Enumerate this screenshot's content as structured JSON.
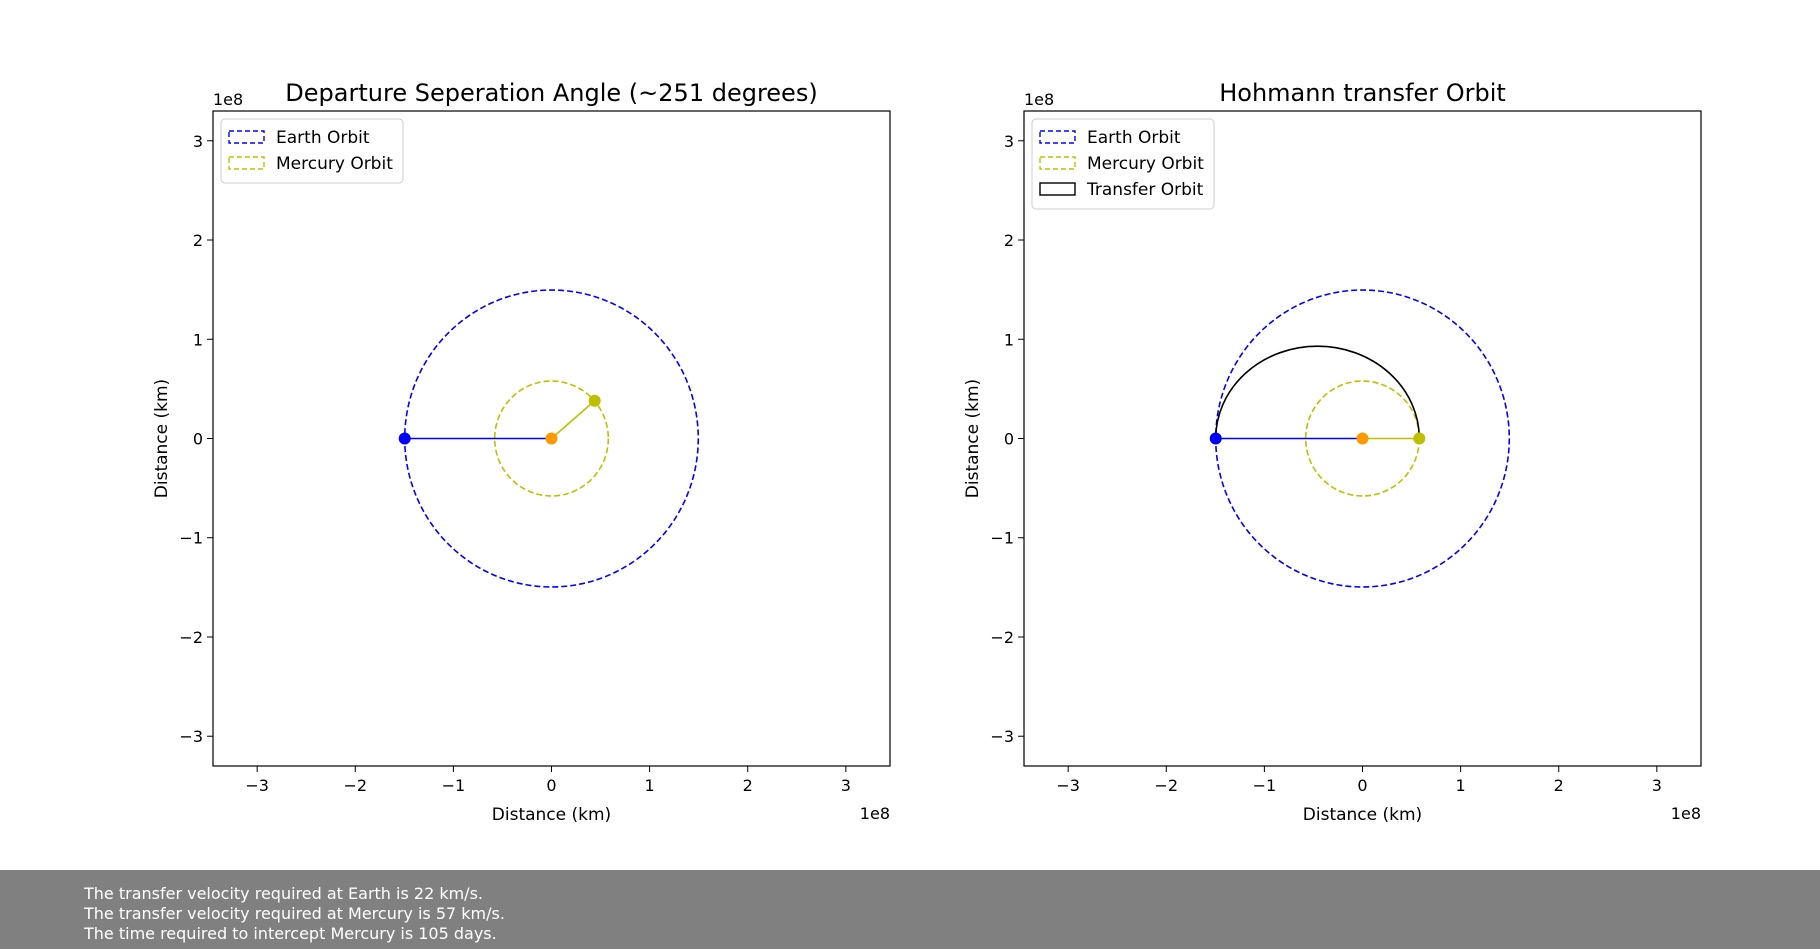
{
  "chart_data": [
    {
      "type": "scatter",
      "title": "Departure Seperation Angle (~251 degrees)",
      "xlabel": "Distance (km)",
      "ylabel": "Distance (km)",
      "x_offset_label": "1e8",
      "y_offset_label": "1e8",
      "scale_multiplier": 100000000,
      "xlim": [
        -3.45,
        3.45
      ],
      "ylim": [
        -3.3,
        3.3
      ],
      "xticks": [
        -3,
        -2,
        -1,
        0,
        1,
        2,
        3
      ],
      "yticks": [
        -3,
        -2,
        -1,
        0,
        1,
        2,
        3
      ],
      "tick_labels": [
        "−3",
        "−2",
        "−1",
        "0",
        "1",
        "2",
        "3"
      ],
      "grid": false,
      "legend_position": "top-left",
      "orbits": [
        {
          "name": "Earth Orbit",
          "radius": 1.496,
          "color": "#0000ff",
          "style": "dashed"
        },
        {
          "name": "Mercury Orbit",
          "radius": 0.579,
          "color": "#bfbf00",
          "style": "dashed"
        }
      ],
      "lines": [
        {
          "from": [
            -1.496,
            0
          ],
          "to": [
            0,
            0
          ],
          "color": "#0000ff"
        },
        {
          "from": [
            0,
            0
          ],
          "to": [
            0.44,
            0.38
          ],
          "color": "#bfbf00"
        }
      ],
      "points": [
        {
          "x": -1.496,
          "y": 0,
          "color": "#0000ff"
        },
        {
          "x": 0,
          "y": 0,
          "color": "#ff9900"
        },
        {
          "x": 0.44,
          "y": 0.38,
          "color": "#bfbf00"
        }
      ],
      "legend": [
        {
          "label": "Earth Orbit",
          "color": "#0000ff",
          "style": "dashed"
        },
        {
          "label": "Mercury Orbit",
          "color": "#bfbf00",
          "style": "dashed"
        }
      ]
    },
    {
      "type": "scatter",
      "title": "Hohmann transfer Orbit",
      "xlabel": "Distance (km)",
      "ylabel": "Distance (km)",
      "x_offset_label": "1e8",
      "y_offset_label": "1e8",
      "scale_multiplier": 100000000,
      "xlim": [
        -3.45,
        3.45
      ],
      "ylim": [
        -3.3,
        3.3
      ],
      "xticks": [
        -3,
        -2,
        -1,
        0,
        1,
        2,
        3
      ],
      "yticks": [
        -3,
        -2,
        -1,
        0,
        1,
        2,
        3
      ],
      "tick_labels": [
        "−3",
        "−2",
        "−1",
        "0",
        "1",
        "2",
        "3"
      ],
      "grid": false,
      "legend_position": "top-left",
      "orbits": [
        {
          "name": "Earth Orbit",
          "radius": 1.496,
          "color": "#0000ff",
          "style": "dashed"
        },
        {
          "name": "Mercury Orbit",
          "radius": 0.579,
          "color": "#bfbf00",
          "style": "dashed"
        }
      ],
      "transfer_orbit": {
        "name": "Transfer Orbit",
        "color": "#000000",
        "style": "solid",
        "perihelion": 0.579,
        "aphelion": 1.496,
        "semi_minor": 0.93
      },
      "lines": [
        {
          "from": [
            -1.496,
            0
          ],
          "to": [
            0,
            0
          ],
          "color": "#0000ff"
        },
        {
          "from": [
            0,
            0
          ],
          "to": [
            0.579,
            0
          ],
          "color": "#bfbf00"
        }
      ],
      "points": [
        {
          "x": -1.496,
          "y": 0,
          "color": "#0000ff"
        },
        {
          "x": 0,
          "y": 0,
          "color": "#ff9900"
        },
        {
          "x": 0.579,
          "y": 0,
          "color": "#bfbf00"
        }
      ],
      "legend": [
        {
          "label": "Earth Orbit",
          "color": "#0000ff",
          "style": "dashed"
        },
        {
          "label": "Mercury Orbit",
          "color": "#bfbf00",
          "style": "dashed"
        },
        {
          "label": "Transfer Orbit",
          "color": "#000000",
          "style": "solid"
        }
      ]
    }
  ],
  "footer": {
    "lines": [
      "The transfer velocity required at Earth is 22 km/s.",
      "The transfer velocity required at Mercury is 57 km/s.",
      "The time required to intercept Mercury is 105 days."
    ]
  }
}
